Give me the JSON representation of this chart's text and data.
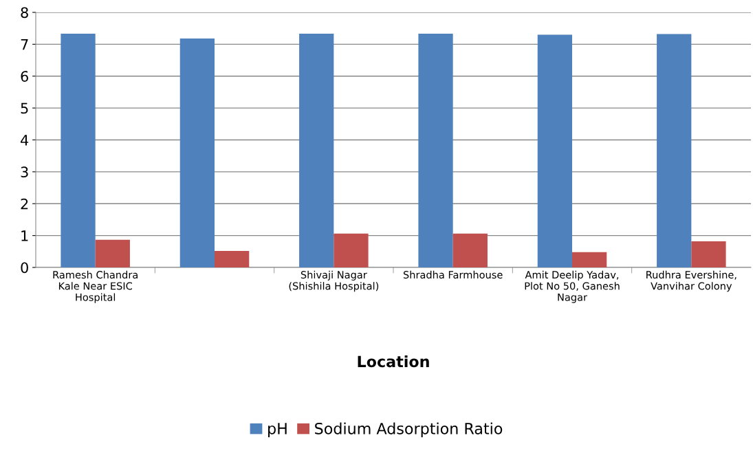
{
  "chart_data": {
    "type": "bar",
    "xlabel": "Location",
    "categories": [
      "Ramesh Chandra Kale Near ESIC Hospital",
      null,
      "Shivaji Nagar (Shishila Hospital)",
      "Shradha Farmhouse",
      "Amit Deelip Yadav, Plot No 50, Ganesh Nagar",
      "Rudhra Evershine, Vanvihar Colony"
    ],
    "series": [
      {
        "name": "pH",
        "color": "#4f81bd",
        "values": [
          7.33,
          7.18,
          7.33,
          7.33,
          7.3,
          7.32
        ]
      },
      {
        "name": "Sodium Adsorption Ratio",
        "color": "#c0504d",
        "values": [
          0.87,
          0.52,
          1.06,
          1.06,
          0.48,
          0.82
        ]
      }
    ],
    "ylim": [
      0,
      8
    ],
    "yticks": [
      0,
      1,
      2,
      3,
      4,
      5,
      6,
      7,
      8
    ],
    "grid": "y",
    "legend": "bottom"
  }
}
